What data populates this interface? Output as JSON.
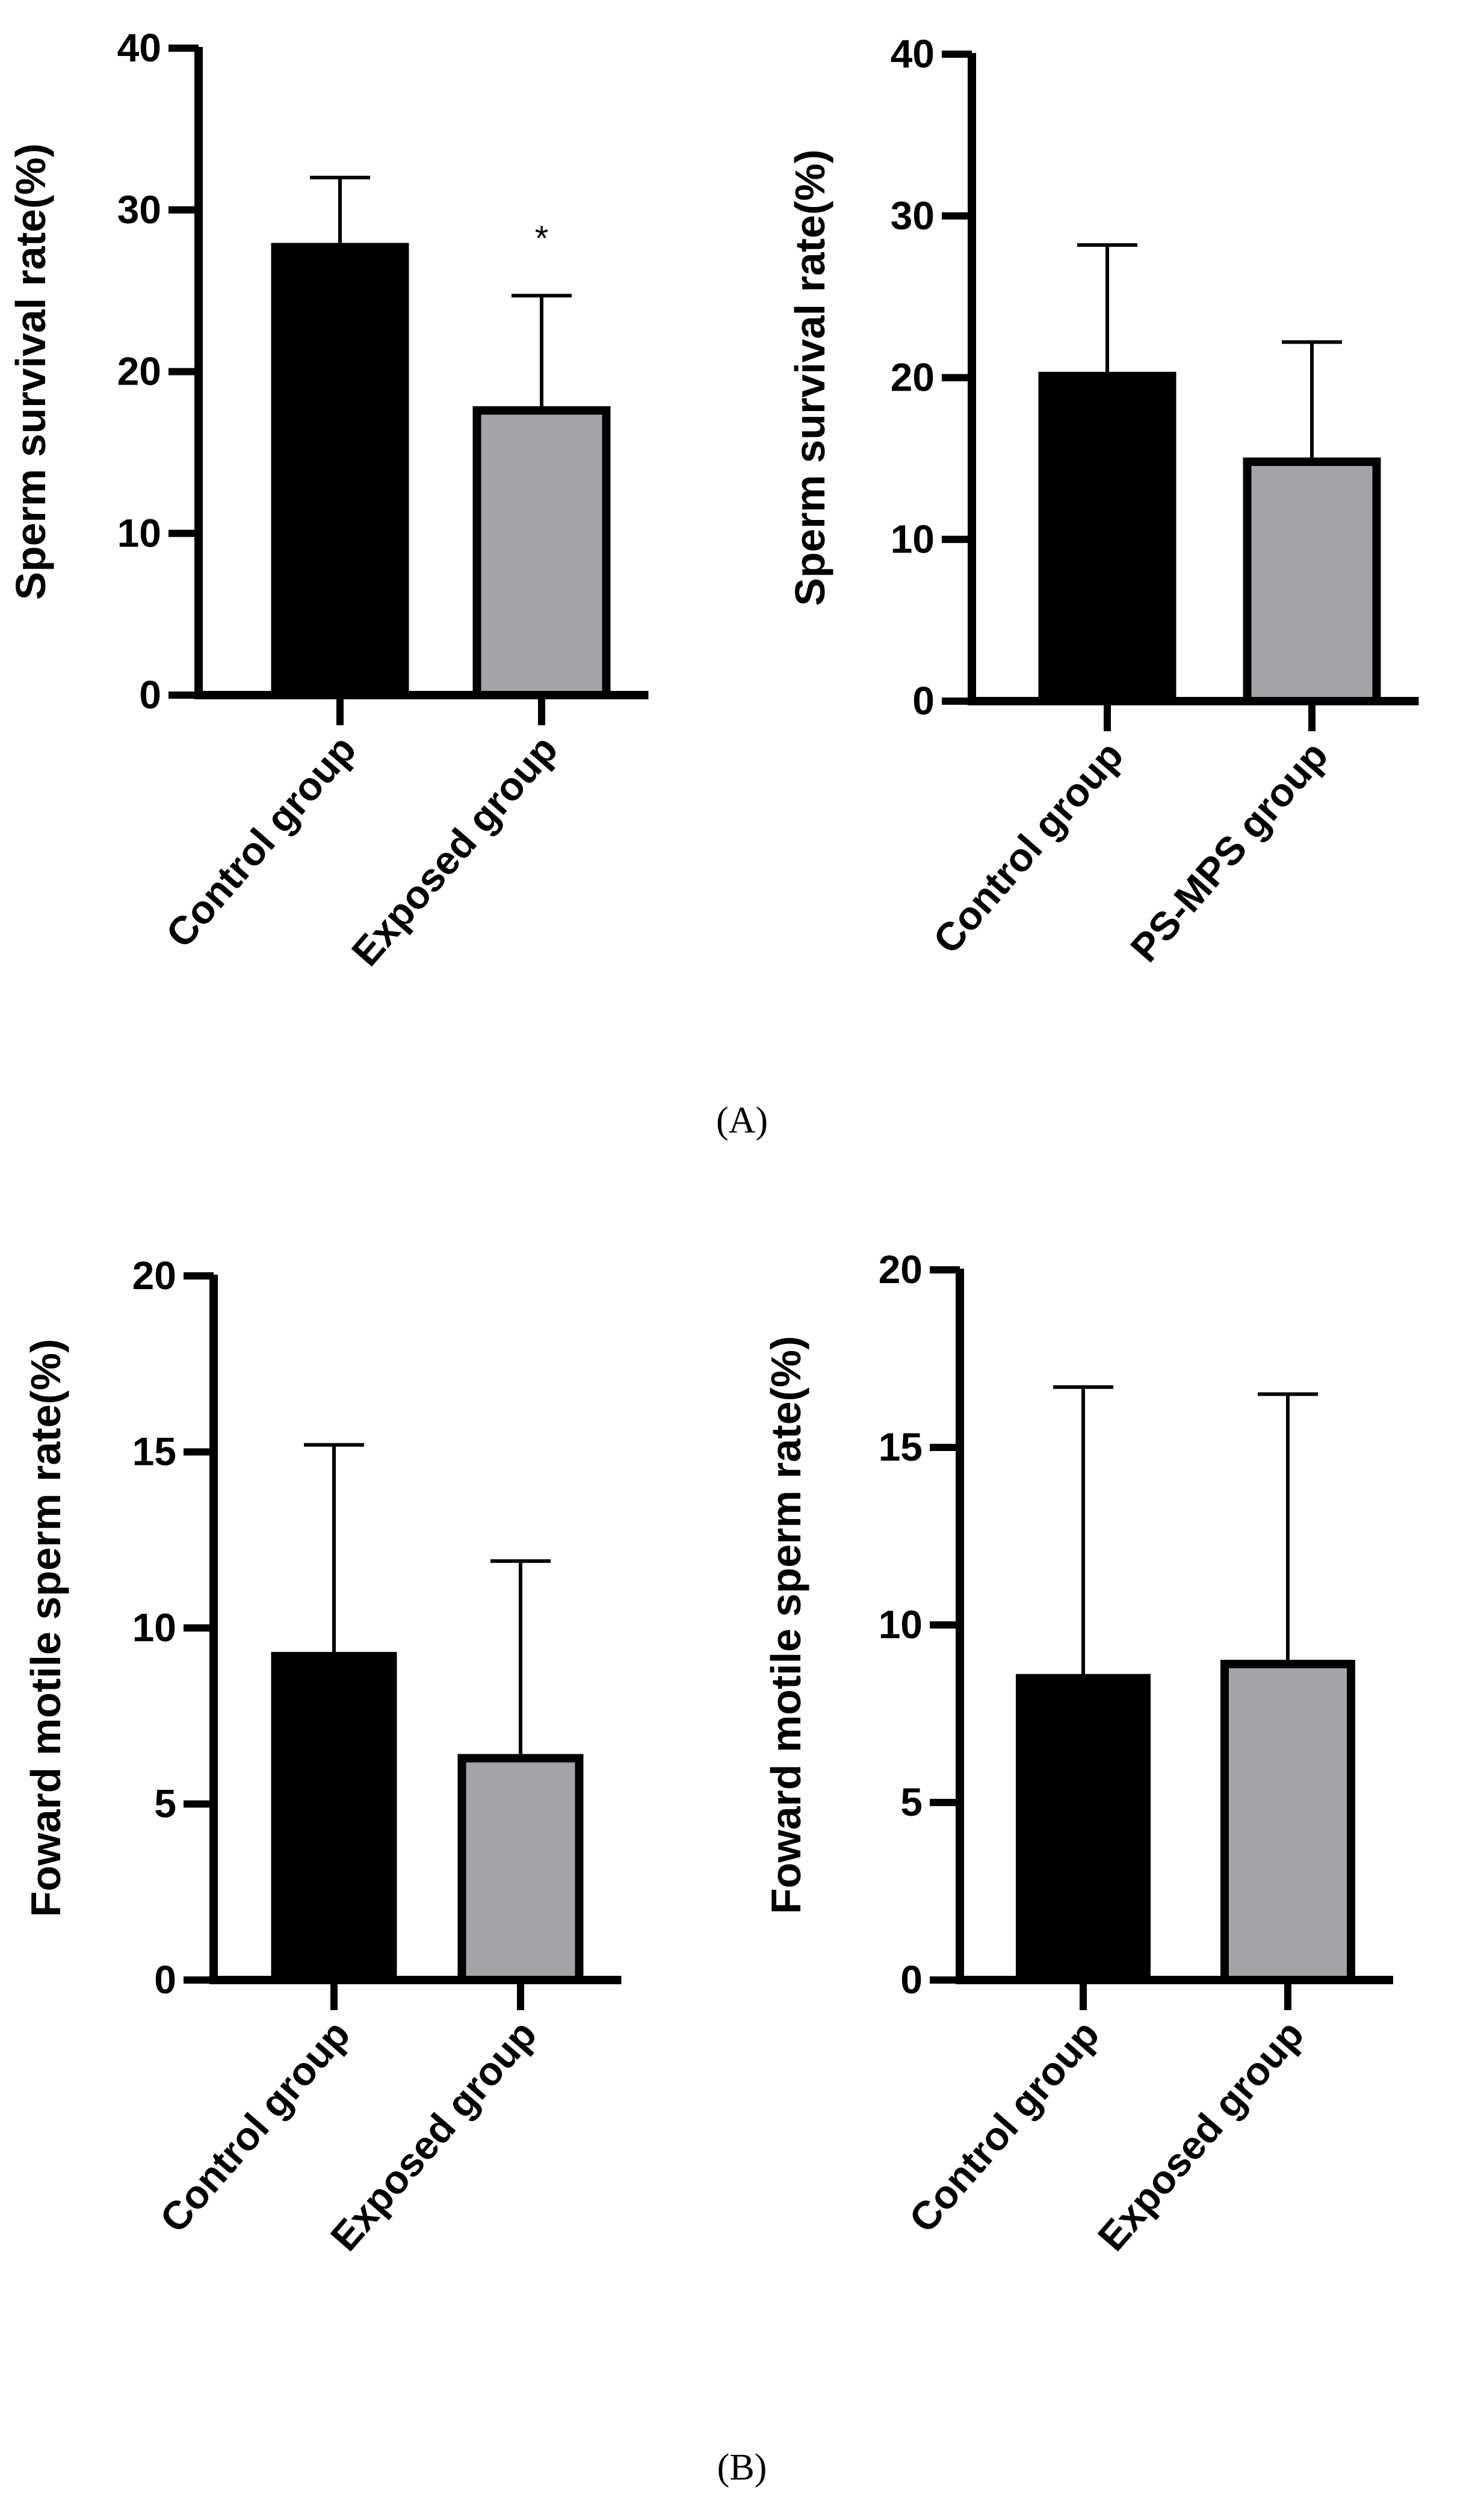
{
  "colors": {
    "control": "#000000",
    "treatment": "#a3a3a8",
    "axis": "#000000",
    "background": "#ffffff"
  },
  "panel_labels": {
    "A": "(A)",
    "B": "(B)"
  },
  "chart_data": [
    {
      "type": "bar",
      "panel": "A",
      "position": "top-left",
      "title": "",
      "ylabel": "Sperm survival rate(%)",
      "xlabel": "",
      "categories": [
        "Control group",
        "Exposed group"
      ],
      "values": [
        27.7,
        17.6
      ],
      "error_upper": [
        32.0,
        24.7
      ],
      "annotations": [
        "",
        "*"
      ],
      "ylim": [
        0,
        40
      ],
      "yticks": [
        0,
        10,
        20,
        30,
        40
      ],
      "ytick_labels": [
        "0",
        "10",
        "20",
        "30",
        "40"
      ],
      "grid": false,
      "legend": "none"
    },
    {
      "type": "bar",
      "panel": "A",
      "position": "top-right",
      "title": "",
      "ylabel": "Sperm survival rate(%)",
      "xlabel": "",
      "categories": [
        "Control group",
        "PS-MPS  group"
      ],
      "values": [
        20.1,
        14.8
      ],
      "error_upper": [
        28.2,
        22.2
      ],
      "annotations": [
        "",
        ""
      ],
      "ylim": [
        0,
        40
      ],
      "yticks": [
        0,
        10,
        20,
        30,
        40
      ],
      "ytick_labels": [
        "0",
        "10",
        "20",
        "30",
        "40"
      ],
      "grid": false,
      "legend": "none"
    },
    {
      "type": "bar",
      "panel": "B",
      "position": "bottom-left",
      "title": "",
      "ylabel": "Foward motile sperm rate(%)",
      "xlabel": "",
      "categories": [
        "Control group",
        "Exposed group"
      ],
      "values": [
        9.2,
        6.3
      ],
      "error_upper": [
        15.2,
        11.9
      ],
      "annotations": [
        "",
        ""
      ],
      "ylim": [
        0,
        20
      ],
      "yticks": [
        0,
        5,
        10,
        15,
        20
      ],
      "ytick_labels": [
        "0",
        "5",
        "10",
        "15",
        "20"
      ],
      "grid": false,
      "legend": "none"
    },
    {
      "type": "bar",
      "panel": "B",
      "position": "bottom-right",
      "title": "",
      "ylabel": "Foward motile sperm rate(%)",
      "xlabel": "",
      "categories": [
        "Control group",
        "Exposed group"
      ],
      "values": [
        8.5,
        8.9
      ],
      "error_upper": [
        16.7,
        16.5
      ],
      "annotations": [
        "",
        ""
      ],
      "ylim": [
        0,
        20
      ],
      "yticks": [
        0,
        5,
        10,
        15,
        20
      ],
      "ytick_labels": [
        "0",
        "5",
        "10",
        "15",
        "20"
      ],
      "grid": false,
      "legend": "none"
    }
  ]
}
